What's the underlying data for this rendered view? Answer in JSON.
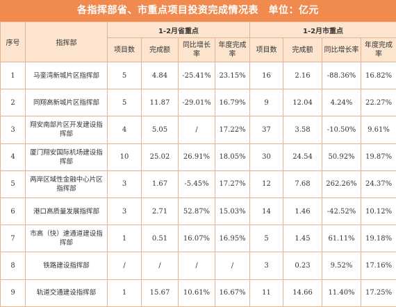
{
  "title": "各指挥部省、市重点项目投资完成情况表　单位：亿元",
  "headers": {
    "seq": "序号",
    "dept": "指挥部",
    "group_prov": "1-2月省重点",
    "group_city": "1-2月市重点",
    "count": "项目数",
    "amount": "完成额",
    "growth": "同比增长率",
    "annual": "年度完成率"
  },
  "rows": [
    {
      "seq": "1",
      "name": "马銮湾新城片区指挥部",
      "p_count": "5",
      "p_amount": "4.84",
      "p_growth": "-25.41%",
      "p_annual": "23.15%",
      "c_count": "16",
      "c_amount": "2.16",
      "c_growth": "-88.36%",
      "c_annual": "16.82%"
    },
    {
      "seq": "2",
      "name": "同翔高新城片区指挥部",
      "p_count": "5",
      "p_amount": "11.87",
      "p_growth": "-29.01%",
      "p_annual": "16.79%",
      "c_count": "9",
      "c_amount": "12.04",
      "c_growth": "4.24%",
      "c_annual": "22.27%"
    },
    {
      "seq": "3",
      "name": "翔安南部片区开发建设指挥部",
      "p_count": "4",
      "p_amount": "5.05",
      "p_growth": "/",
      "p_annual": "17.22%",
      "c_count": "37",
      "c_amount": "3.58",
      "c_growth": "-10.50%",
      "c_annual": "9.61%"
    },
    {
      "seq": "4",
      "name": "厦门翔安国际机场建设指挥部",
      "p_count": "10",
      "p_amount": "25.02",
      "p_growth": "26.91%",
      "p_annual": "18.05%",
      "c_count": "30",
      "c_amount": "24.54",
      "c_growth": "50.92%",
      "c_annual": "19.87%"
    },
    {
      "seq": "5",
      "name": "两岸区域性金融中心片区指挥部",
      "p_count": "3",
      "p_amount": "1.67",
      "p_growth": "-5.45%",
      "p_annual": "17.27%",
      "c_count": "12",
      "c_amount": "7.68",
      "c_growth": "262.26%",
      "c_annual": "24.37%"
    },
    {
      "seq": "6",
      "name": "港口高质量发展指挥部",
      "p_count": "3",
      "p_amount": "2.71",
      "p_growth": "52.87%",
      "p_annual": "15.03%",
      "c_count": "14",
      "c_amount": "1.46",
      "c_growth": "-42.52%",
      "c_annual": "10.12%"
    },
    {
      "seq": "7",
      "name": "市高（快）速通道建设指挥部",
      "p_count": "1",
      "p_amount": "0.51",
      "p_growth": "16.07%",
      "p_annual": "16.95%",
      "c_count": "5",
      "c_amount": "1.45",
      "c_growth": "61.11%",
      "c_annual": "19.18%"
    },
    {
      "seq": "8",
      "name": "铁路建设指挥部",
      "p_count": "/",
      "p_amount": "/",
      "p_growth": "/",
      "p_annual": "/",
      "c_count": "3",
      "c_amount": "0.23",
      "c_growth": "9.52%",
      "c_annual": "17.16%"
    },
    {
      "seq": "9",
      "name": "轨道交通建设指挥部",
      "p_count": "1",
      "p_amount": "15.67",
      "p_growth": "10.61%",
      "p_annual": "16.67%",
      "c_count": "11",
      "c_amount": "14.66",
      "c_growth": "11.40%",
      "c_annual": "17.25%"
    }
  ]
}
